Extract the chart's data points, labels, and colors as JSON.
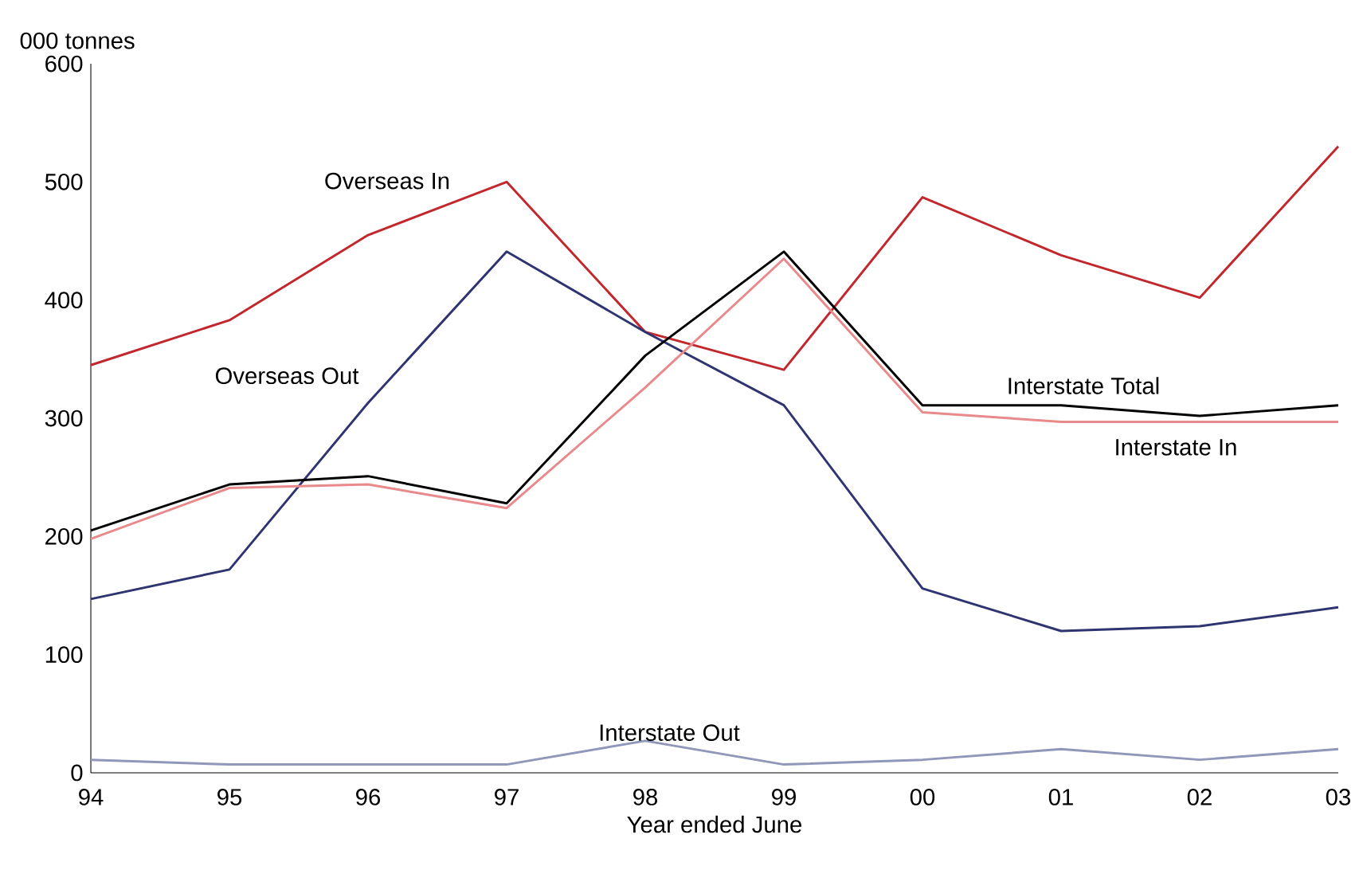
{
  "chart_data": {
    "type": "line",
    "xlabel": "Year ended June",
    "ylabel": "000 tonnes",
    "categories": [
      "94",
      "95",
      "96",
      "97",
      "98",
      "99",
      "00",
      "01",
      "02",
      "03"
    ],
    "ylim": [
      0,
      600
    ],
    "yticks": [
      0,
      100,
      200,
      300,
      400,
      500,
      600
    ],
    "grid": false,
    "marker": "none",
    "line_style": "solid",
    "series": [
      {
        "name": "Overseas In",
        "color": "#c1272d",
        "values": [
          345,
          383,
          455,
          500,
          373,
          341,
          487,
          438,
          402,
          530
        ]
      },
      {
        "name": "Overseas Out",
        "color": "#2e3470",
        "values": [
          147,
          172,
          313,
          441,
          373,
          311,
          156,
          120,
          124,
          140
        ]
      },
      {
        "name": "Interstate Total",
        "color": "#000000",
        "values": [
          205,
          244,
          251,
          228,
          353,
          441,
          311,
          311,
          302,
          311
        ]
      },
      {
        "name": "Interstate In",
        "color": "#e8898c",
        "values": [
          198,
          241,
          244,
          224,
          326,
          435,
          305,
          297,
          297,
          297
        ]
      },
      {
        "name": "Interstate Out",
        "color": "#9097b8",
        "values": [
          11,
          7,
          7,
          7,
          27,
          7,
          11,
          20,
          11,
          20
        ]
      }
    ]
  }
}
